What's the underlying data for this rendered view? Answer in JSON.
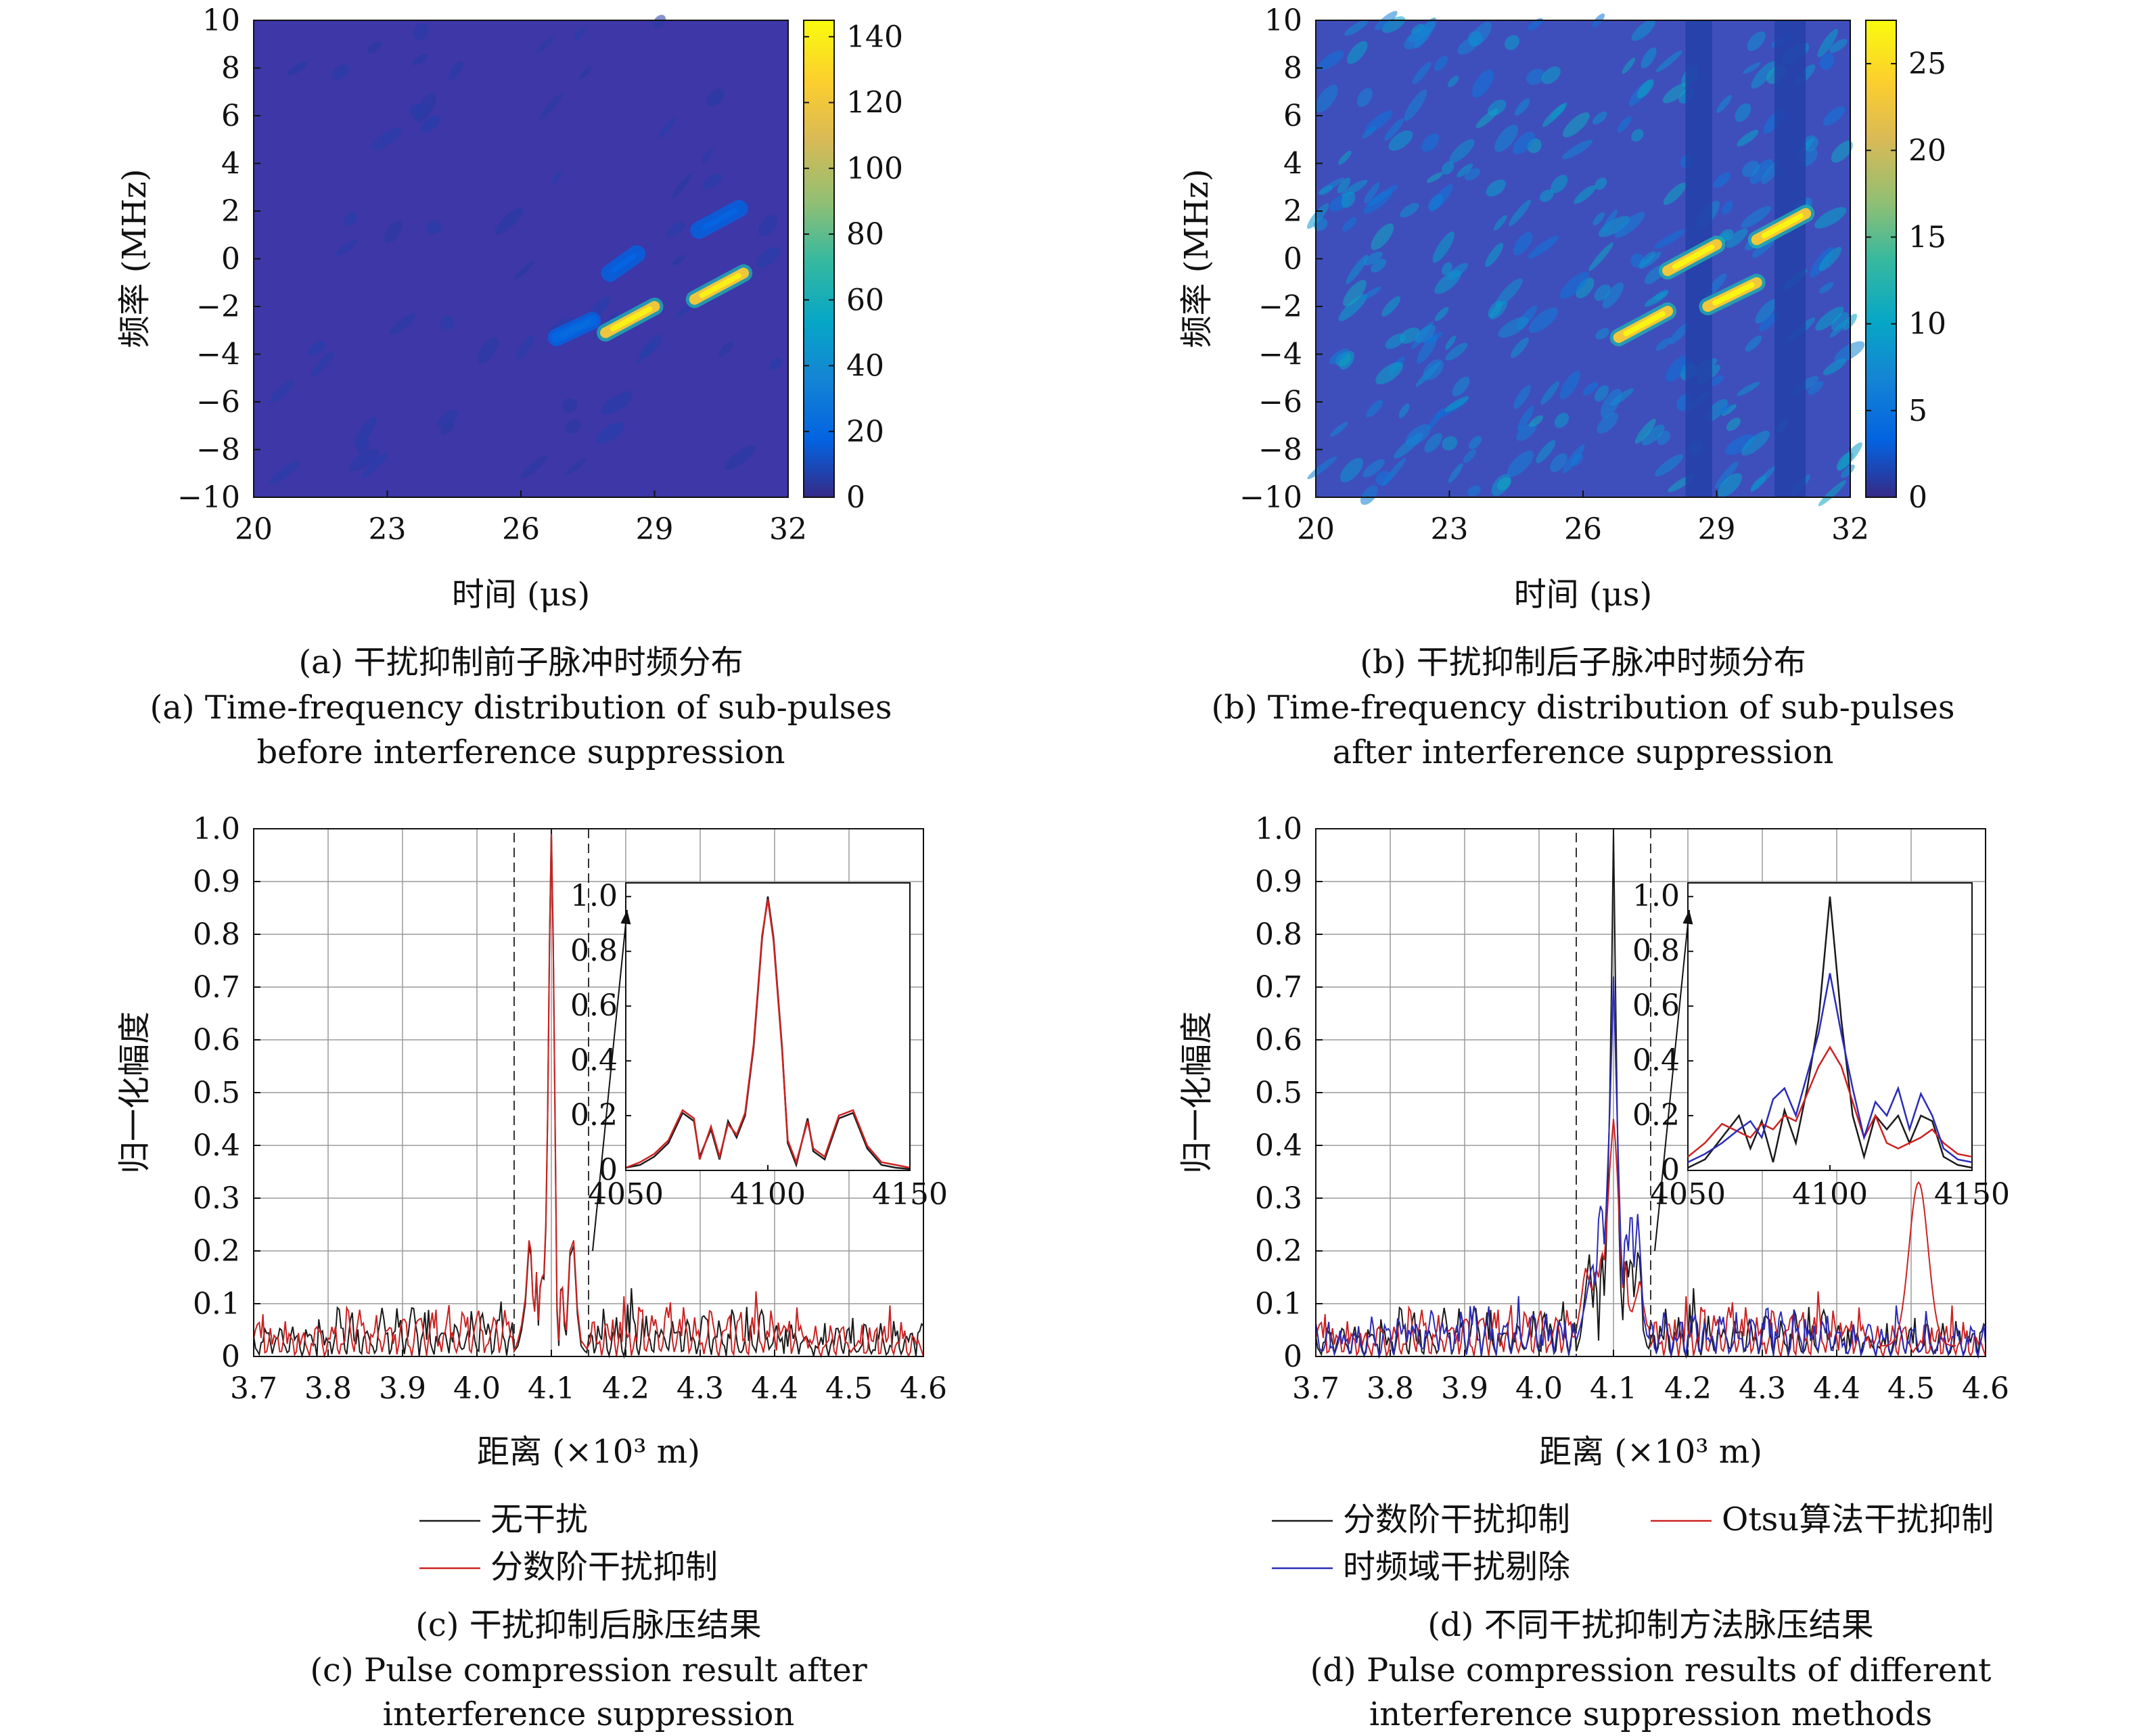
{
  "colors": {
    "no_interference": "#1a1a1a",
    "fractional": "#cc2222",
    "otsu": "#cc2222",
    "tf_removal": "#2b2bb8",
    "colormap": "parula"
  },
  "chart_data": [
    {
      "id": "a",
      "type": "heatmap",
      "xlabel": "时间 (μs)",
      "ylabel": "频率 (MHz)",
      "xlim": [
        20,
        32
      ],
      "ylim": [
        -10,
        10
      ],
      "xticks": [
        20,
        23,
        26,
        29,
        32
      ],
      "yticks": [
        -10,
        -8,
        -6,
        -4,
        -2,
        0,
        2,
        4,
        6,
        8,
        10
      ],
      "colorbar": {
        "min": 0,
        "max": 145,
        "ticks": [
          0,
          20,
          40,
          60,
          80,
          100,
          120,
          140
        ]
      },
      "background_level": 5,
      "features": [
        {
          "t0": 27.9,
          "f0": -3.1,
          "t1": 29.0,
          "f1": -2.0,
          "peak": 140
        },
        {
          "t0": 29.9,
          "f0": -1.7,
          "t1": 31.0,
          "f1": -0.6,
          "peak": 140
        },
        {
          "t0": 26.8,
          "f0": -3.3,
          "t1": 27.6,
          "f1": -2.6,
          "peak": 22
        },
        {
          "t0": 28.0,
          "f0": -0.6,
          "t1": 28.6,
          "f1": 0.2,
          "peak": 18
        },
        {
          "t0": 30.0,
          "f0": 1.2,
          "t1": 30.9,
          "f1": 2.1,
          "peak": 18
        }
      ],
      "caption_cn": "(a) 干扰抑制前子脉冲时频分布",
      "caption_en_1": "(a) Time-frequency distribution of sub-pulses",
      "caption_en_2": "before interference suppression"
    },
    {
      "id": "b",
      "type": "heatmap",
      "xlabel": "时间 (μs)",
      "ylabel": "频率 (MHz)",
      "xlim": [
        20,
        32
      ],
      "ylim": [
        -10,
        10
      ],
      "xticks": [
        20,
        23,
        26,
        29,
        32
      ],
      "yticks": [
        -10,
        -8,
        -6,
        -4,
        -2,
        0,
        2,
        4,
        6,
        8,
        10
      ],
      "colorbar": {
        "min": 0,
        "max": 27.5,
        "ticks": [
          0,
          5,
          10,
          15,
          20,
          25
        ]
      },
      "background_level": 5,
      "dark_bands": [
        [
          28.3,
          28.9
        ],
        [
          30.3,
          31.0
        ]
      ],
      "features": [
        {
          "t0": 26.8,
          "f0": -3.3,
          "t1": 27.9,
          "f1": -2.2,
          "peak": 27
        },
        {
          "t0": 27.9,
          "f0": -0.5,
          "t1": 29.0,
          "f1": 0.6,
          "peak": 27
        },
        {
          "t0": 28.8,
          "f0": -2.0,
          "t1": 29.9,
          "f1": -1.0,
          "peak": 27
        },
        {
          "t0": 29.9,
          "f0": 0.8,
          "t1": 31.0,
          "f1": 1.9,
          "peak": 27
        }
      ],
      "caption_cn": "(b) 干扰抑制后子脉冲时频分布",
      "caption_en_1": "(b) Time-frequency distribution of sub-pulses",
      "caption_en_2": "after interference suppression"
    },
    {
      "id": "c",
      "type": "line",
      "xlabel": "距离 (×10³ m)",
      "ylabel": "归一化幅度",
      "xlim": [
        3.7,
        4.6
      ],
      "ylim": [
        0,
        1
      ],
      "xticks": [
        3.7,
        3.8,
        3.9,
        4.0,
        4.1,
        4.2,
        4.3,
        4.4,
        4.5,
        4.6
      ],
      "yticks": [
        0,
        0.1,
        0.2,
        0.3,
        0.4,
        0.5,
        0.6,
        0.7,
        0.8,
        0.9,
        1.0
      ],
      "grid": true,
      "zoom_box": [
        4.05,
        4.15
      ],
      "inset": {
        "xlim": [
          4050,
          4150
        ],
        "ylim": [
          0,
          1.05
        ],
        "xticks": [
          4050,
          4100,
          4150
        ],
        "yticks": [
          0,
          0.2,
          0.4,
          0.6,
          0.8,
          1.0
        ],
        "series": [
          {
            "name": "无干扰",
            "x": [
              4050,
              4055,
              4060,
              4065,
              4070,
              4074,
              4076,
              4080,
              4083,
              4086,
              4089,
              4092,
              4095,
              4098,
              4100,
              4102,
              4105,
              4107,
              4110,
              4114,
              4116,
              4120,
              4125,
              4130,
              4135,
              4140,
              4145,
              4150
            ],
            "y": [
              0.01,
              0.02,
              0.05,
              0.1,
              0.21,
              0.18,
              0.05,
              0.15,
              0.04,
              0.18,
              0.12,
              0.2,
              0.45,
              0.85,
              1.0,
              0.85,
              0.45,
              0.1,
              0.02,
              0.19,
              0.07,
              0.04,
              0.19,
              0.21,
              0.08,
              0.02,
              0.01,
              0.005
            ]
          },
          {
            "name": "分数阶干扰抑制",
            "x": [
              4050,
              4055,
              4060,
              4065,
              4070,
              4074,
              4076,
              4080,
              4083,
              4086,
              4089,
              4092,
              4095,
              4098,
              4100,
              4102,
              4105,
              4107,
              4110,
              4114,
              4116,
              4120,
              4125,
              4130,
              4135,
              4140,
              4145,
              4150
            ],
            "y": [
              0.01,
              0.03,
              0.06,
              0.11,
              0.22,
              0.19,
              0.04,
              0.16,
              0.05,
              0.17,
              0.13,
              0.21,
              0.46,
              0.86,
              0.99,
              0.84,
              0.44,
              0.11,
              0.03,
              0.18,
              0.08,
              0.05,
              0.2,
              0.22,
              0.09,
              0.03,
              0.02,
              0.01
            ]
          }
        ]
      },
      "legend": [
        "无干扰",
        "分数阶干扰抑制"
      ],
      "caption_cn": "(c) 干扰抑制后脉压结果",
      "caption_en_1": "(c) Pulse compression result after",
      "caption_en_2": "interference suppression"
    },
    {
      "id": "d",
      "type": "line",
      "xlabel": "距离 (×10³ m)",
      "ylabel": "归一化幅度",
      "xlim": [
        3.7,
        4.6
      ],
      "ylim": [
        0,
        1
      ],
      "xticks": [
        3.7,
        3.8,
        3.9,
        4.0,
        4.1,
        4.2,
        4.3,
        4.4,
        4.5,
        4.6
      ],
      "yticks": [
        0,
        0.1,
        0.2,
        0.3,
        0.4,
        0.5,
        0.6,
        0.7,
        0.8,
        0.9,
        1.0
      ],
      "grid": true,
      "zoom_box": [
        4.05,
        4.15
      ],
      "inset": {
        "xlim": [
          4050,
          4150
        ],
        "ylim": [
          0,
          1.05
        ],
        "xticks": [
          4050,
          4100,
          4150
        ],
        "yticks": [
          0,
          0.2,
          0.4,
          0.6,
          0.8,
          1.0
        ],
        "series": [
          {
            "name": "分数阶干扰抑制",
            "x": [
              4050,
              4056,
              4062,
              4068,
              4072,
              4076,
              4080,
              4084,
              4088,
              4092,
              4096,
              4100,
              4104,
              4108,
              4112,
              4116,
              4120,
              4124,
              4128,
              4132,
              4136,
              4140,
              4145,
              4150
            ],
            "y": [
              0.01,
              0.04,
              0.12,
              0.2,
              0.08,
              0.18,
              0.03,
              0.22,
              0.1,
              0.3,
              0.55,
              1.0,
              0.55,
              0.2,
              0.05,
              0.2,
              0.15,
              0.2,
              0.1,
              0.2,
              0.18,
              0.05,
              0.02,
              0.01
            ]
          },
          {
            "name": "Otsu算法干扰抑制",
            "x": [
              4050,
              4056,
              4062,
              4068,
              4072,
              4076,
              4080,
              4084,
              4088,
              4092,
              4096,
              4100,
              4104,
              4108,
              4112,
              4116,
              4120,
              4124,
              4128,
              4132,
              4136,
              4140,
              4145,
              4150
            ],
            "y": [
              0.05,
              0.1,
              0.17,
              0.14,
              0.12,
              0.17,
              0.15,
              0.2,
              0.18,
              0.28,
              0.38,
              0.45,
              0.38,
              0.25,
              0.12,
              0.2,
              0.1,
              0.08,
              0.1,
              0.12,
              0.15,
              0.1,
              0.06,
              0.05
            ]
          },
          {
            "name": "时频域干扰剔除",
            "x": [
              4050,
              4056,
              4062,
              4068,
              4072,
              4076,
              4080,
              4084,
              4088,
              4092,
              4096,
              4100,
              4104,
              4108,
              4112,
              4116,
              4120,
              4124,
              4128,
              4132,
              4136,
              4140,
              4145,
              4150
            ],
            "y": [
              0.03,
              0.06,
              0.1,
              0.15,
              0.18,
              0.12,
              0.26,
              0.3,
              0.2,
              0.35,
              0.5,
              0.72,
              0.5,
              0.3,
              0.12,
              0.25,
              0.2,
              0.3,
              0.15,
              0.28,
              0.2,
              0.08,
              0.04,
              0.03
            ]
          }
        ]
      },
      "legend": [
        "分数阶干扰抑制",
        "Otsu算法干扰抑制",
        "时频域干扰剔除"
      ],
      "caption_cn": "(d) 不同干扰抑制方法脉压结果",
      "caption_en_1": "(d) Pulse compression results of different",
      "caption_en_2": "interference suppression methods"
    }
  ]
}
